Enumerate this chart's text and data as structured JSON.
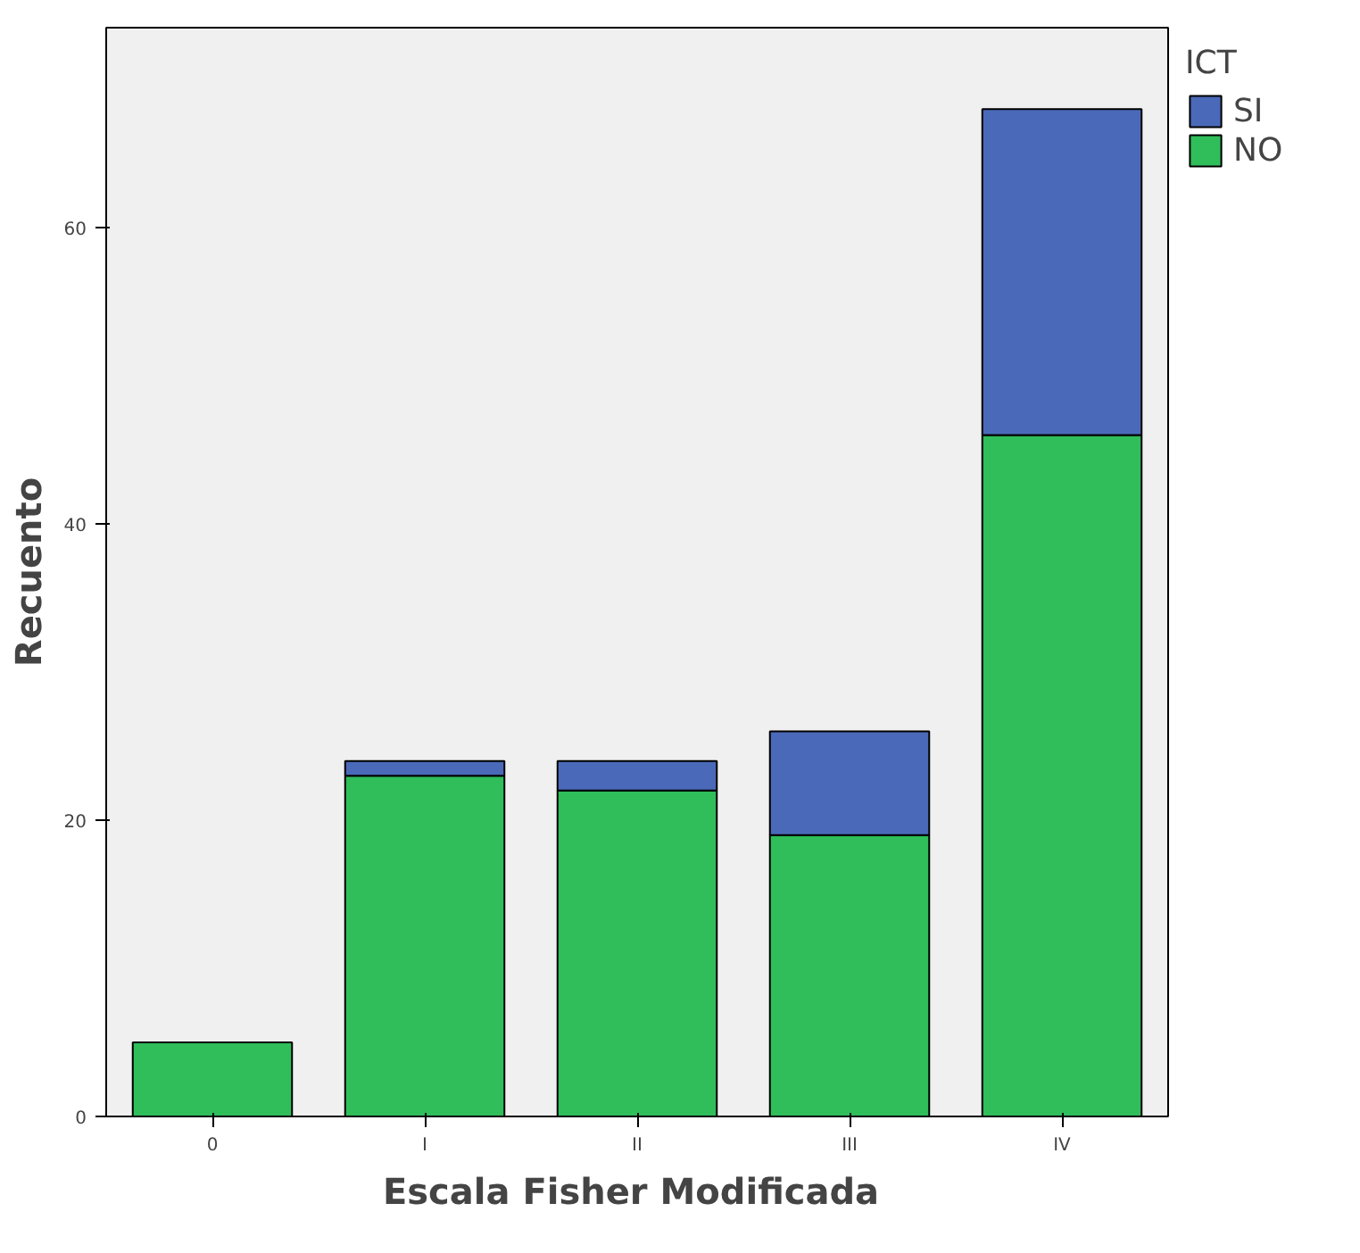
{
  "chart_data": {
    "type": "bar",
    "stacked": true,
    "xlabel": "Escala Fisher  Modificada",
    "ylabel": "Recuento",
    "legend_title": "ICT",
    "legend": "top right",
    "categories": [
      "0",
      "I",
      "II",
      "III",
      "IV"
    ],
    "series": [
      {
        "name": "NO",
        "color": "#2fbe5a",
        "values": [
          5,
          23,
          22,
          19,
          46
        ]
      },
      {
        "name": "SI",
        "color": "#4a69b8",
        "values": [
          null,
          1,
          2,
          7,
          22
        ]
      }
    ],
    "ylim": [
      0,
      73.5
    ],
    "yticks": [
      0,
      20,
      40,
      60
    ],
    "grid": false
  }
}
